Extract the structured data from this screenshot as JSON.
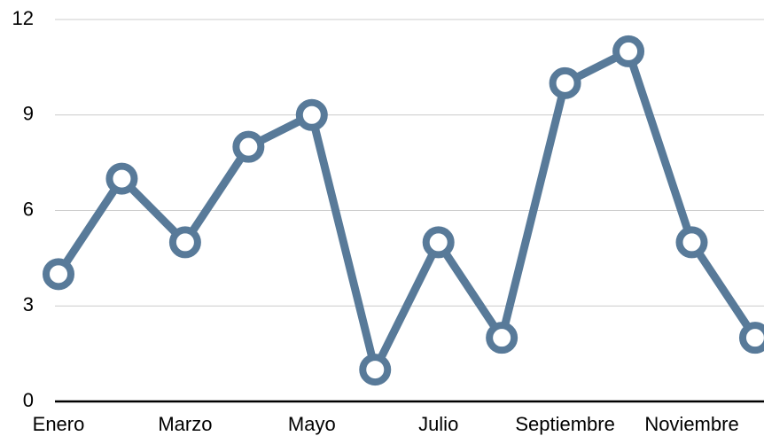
{
  "chart_data": {
    "type": "line",
    "categories": [
      "Enero",
      null,
      "Marzo",
      null,
      "Mayo",
      null,
      "Julio",
      null,
      "Septiembre",
      null,
      "Noviembre",
      null
    ],
    "series": [
      {
        "color": "#587a99",
        "values": [
          4,
          7,
          5,
          8,
          9,
          1,
          5,
          2,
          10,
          11,
          5,
          2
        ]
      }
    ],
    "ylim": [
      0,
      12
    ],
    "yticks": [
      0,
      3,
      6,
      9,
      12
    ],
    "grid": true
  }
}
